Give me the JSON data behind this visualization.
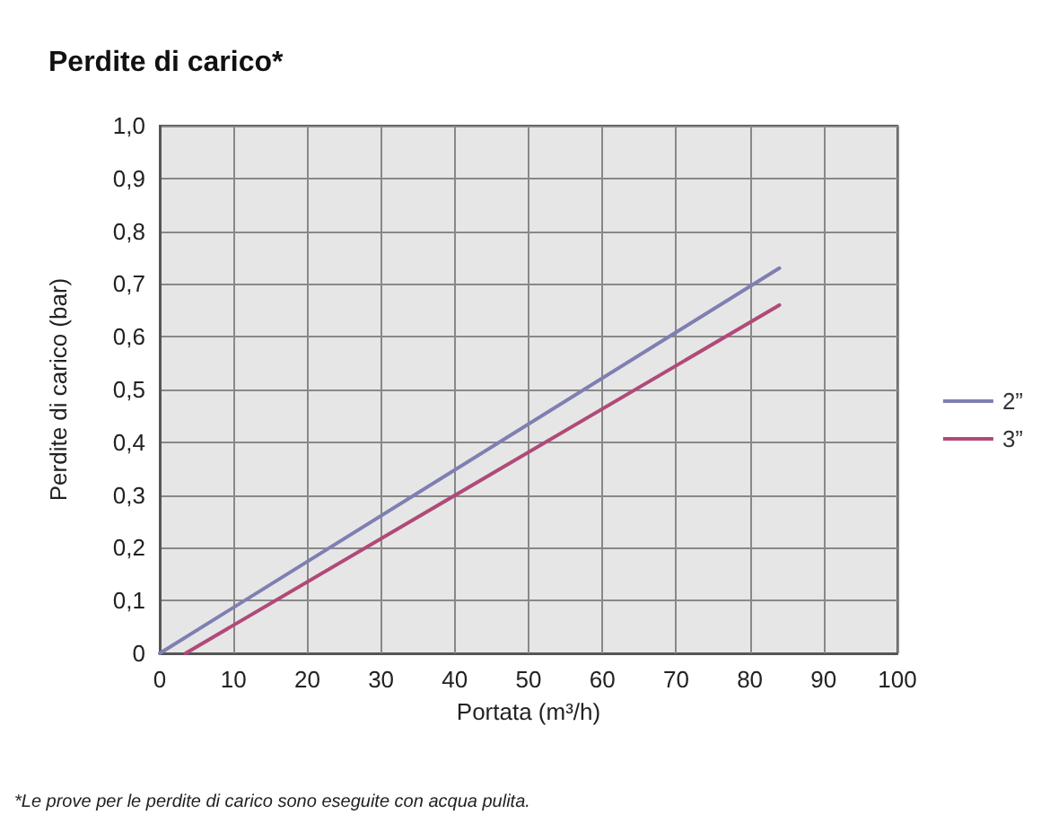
{
  "chart_data": {
    "type": "line",
    "title": "Perdite di carico*",
    "xlabel": "Portata (m³/h)",
    "ylabel": "Perdite di carico (bar)",
    "annotations": [
      "*Le prove per le perdite di carico sono eseguite con acqua pulita."
    ],
    "series": [
      {
        "name": "2”",
        "color": "#7f7fb3",
        "x": [
          0,
          84
        ],
        "values": [
          0,
          0.73
        ]
      },
      {
        "name": "3”",
        "color": "#b04a78",
        "x": [
          3.5,
          84
        ],
        "values": [
          0,
          0.66
        ]
      }
    ],
    "xlim": [
      0,
      100
    ],
    "xticks": [
      0,
      10,
      20,
      30,
      40,
      50,
      60,
      70,
      80,
      90,
      100
    ],
    "ylim": [
      0,
      1
    ],
    "yticks": [
      0,
      {
        "value": 0.1,
        "label": "0,1"
      },
      {
        "value": 0.2,
        "label": "0,2"
      },
      {
        "value": 0.3,
        "label": "0,3"
      },
      {
        "value": 0.4,
        "label": "0,4"
      },
      {
        "value": 0.5,
        "label": "0,5"
      },
      {
        "value": 0.6,
        "label": "0,6"
      },
      {
        "value": 0.7,
        "label": "0,7"
      },
      {
        "value": 0.8,
        "label": "0,8"
      },
      {
        "value": 0.9,
        "label": "0,9"
      },
      {
        "value": 1,
        "label": "1,0"
      }
    ],
    "grid": true,
    "legend": "right",
    "marker": "none",
    "line_style": "solid"
  }
}
